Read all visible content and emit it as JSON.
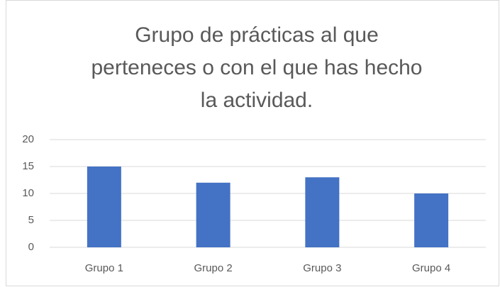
{
  "chart_data": {
    "type": "bar",
    "title": "Grupo de prácticas al que perteneces o con el que has hecho la actividad.",
    "categories": [
      "Grupo 1",
      "Grupo 2",
      "Grupo 3",
      "Grupo 4"
    ],
    "values": [
      15,
      12,
      13,
      10
    ],
    "color": "#4472c4",
    "ylim": [
      0,
      20
    ],
    "yticks": [
      0,
      5,
      10,
      15,
      20
    ],
    "grid": true
  }
}
